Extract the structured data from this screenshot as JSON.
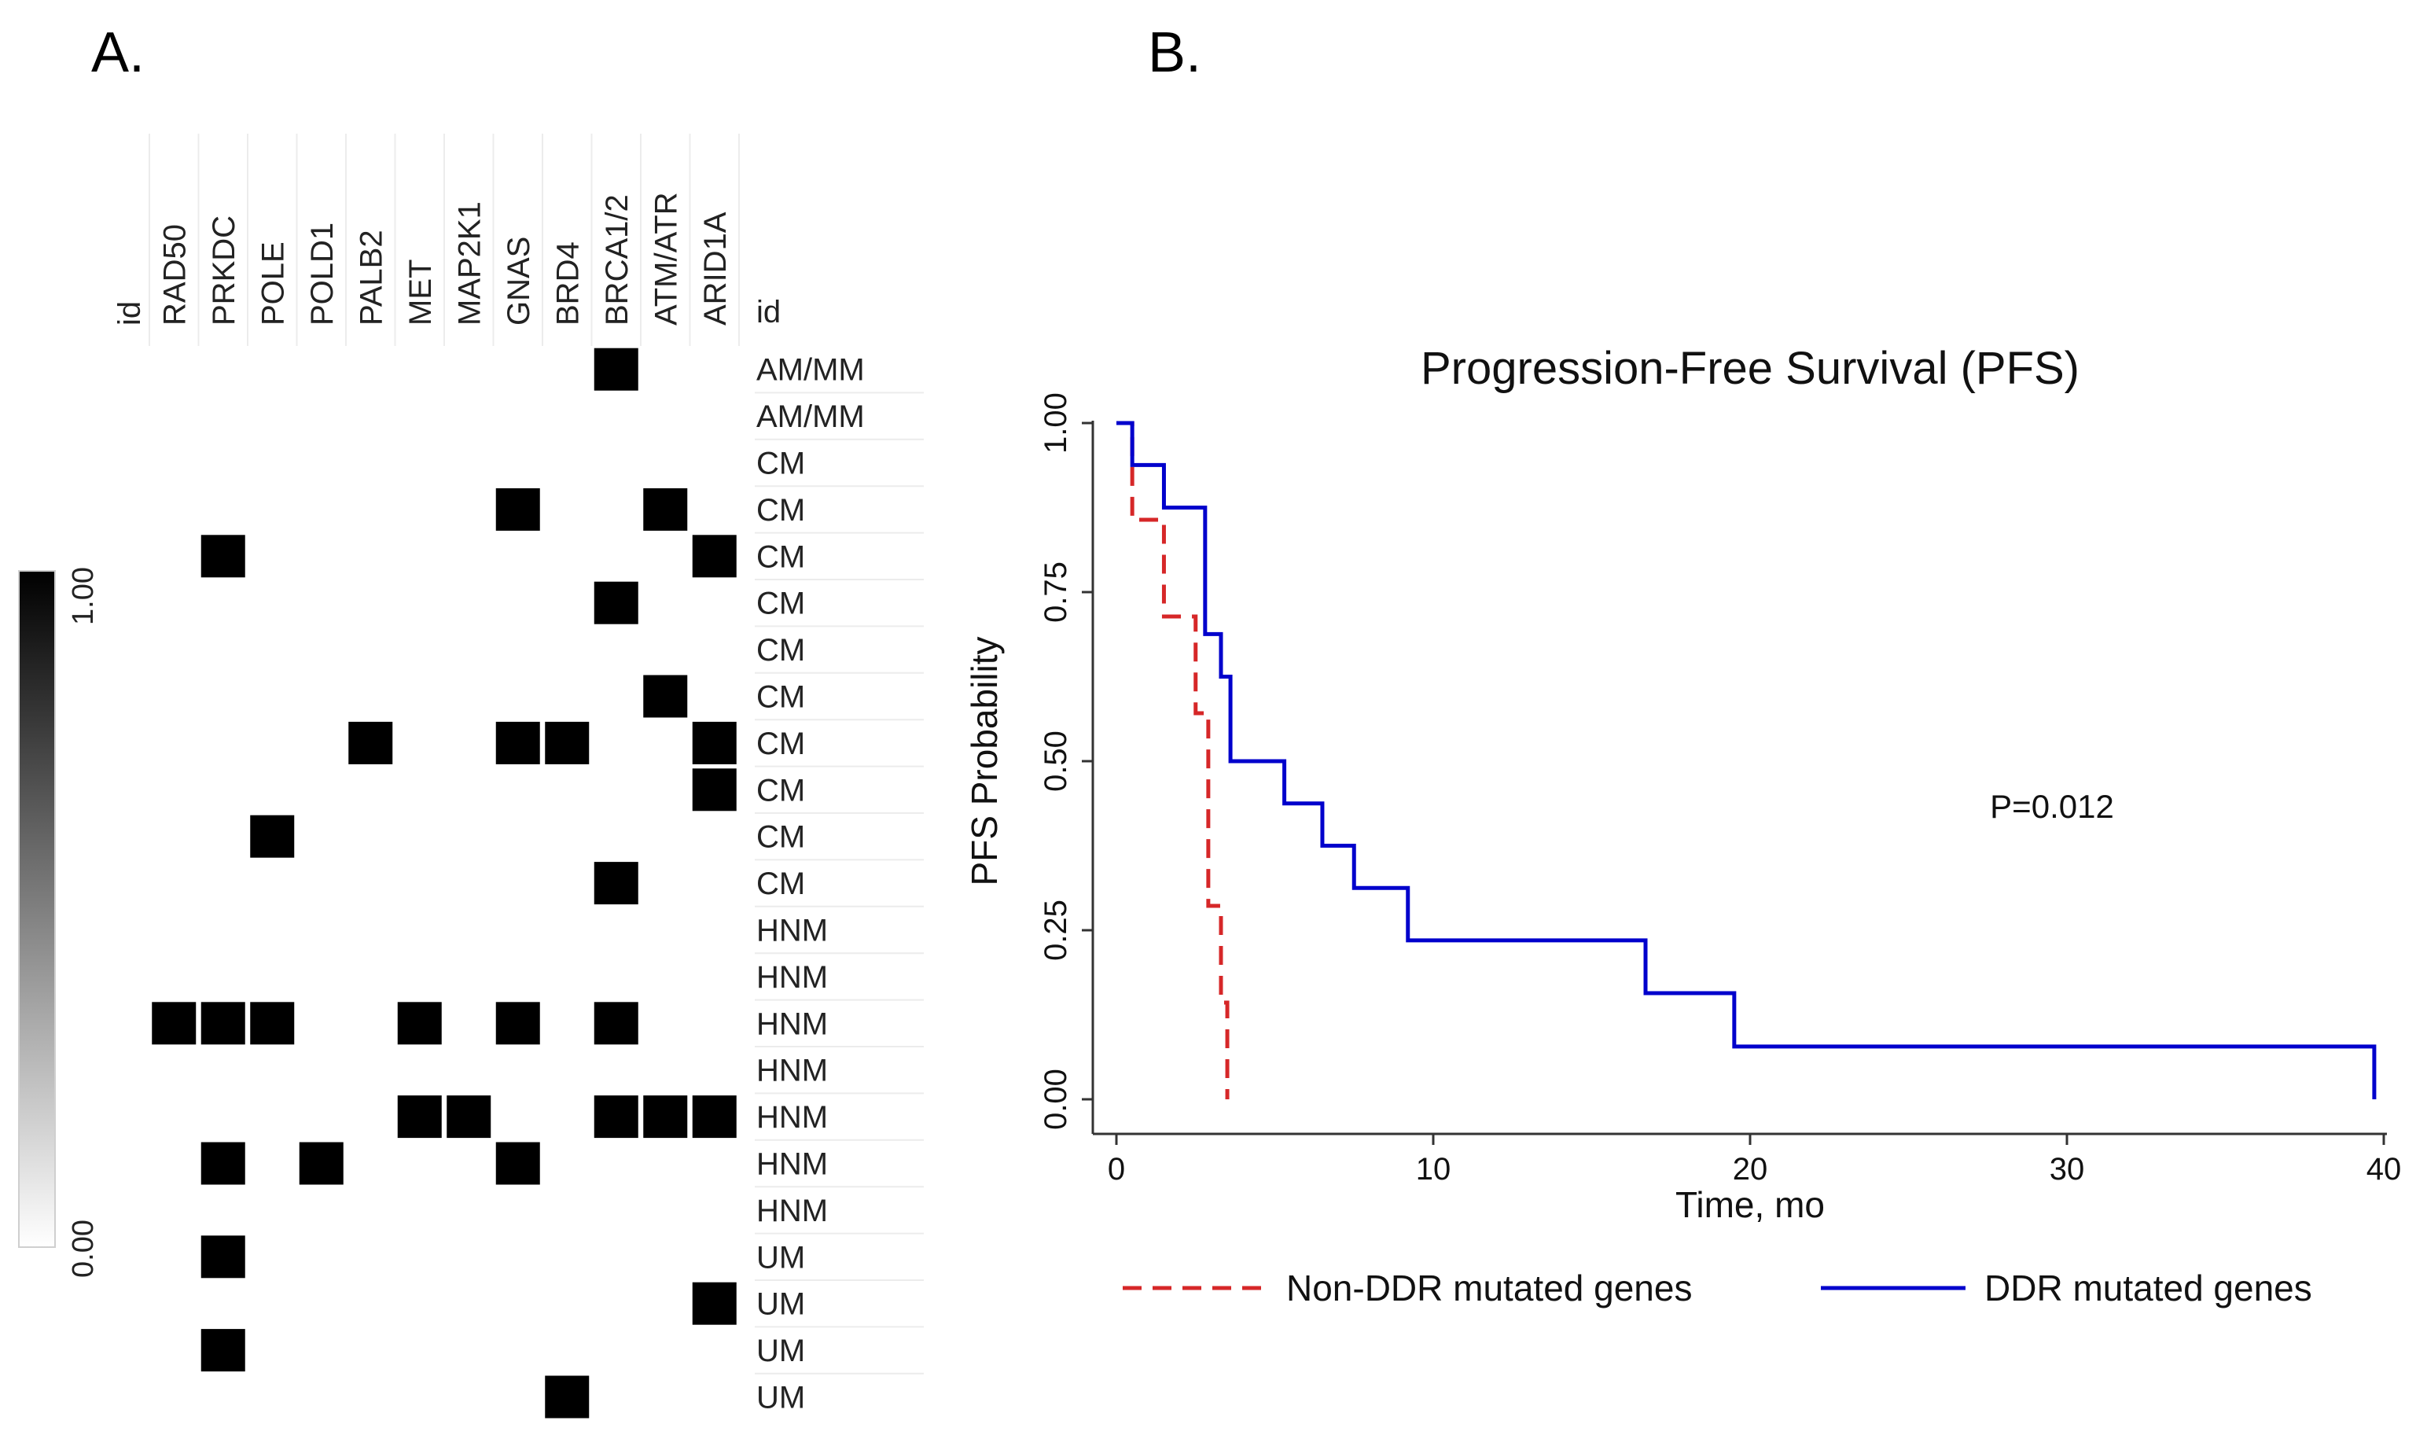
{
  "panels": {
    "a_label": "A.",
    "b_label": "B."
  },
  "chart_data": [
    {
      "type": "heatmap",
      "panel": "A.",
      "id_label_left": "id",
      "id_label_right": "id",
      "genes": [
        "RAD50",
        "PRKDC",
        "POLE",
        "POLD1",
        "PALB2",
        "MET",
        "MAP2K1",
        "GNAS",
        "BRD4",
        "BRCA1/2",
        "ATM/ATR",
        "ARID1A"
      ],
      "rows": [
        {
          "id": "AM/MM",
          "values": [
            0,
            0,
            0,
            0,
            0,
            0,
            0,
            0,
            0,
            1,
            0,
            0
          ]
        },
        {
          "id": "AM/MM",
          "values": [
            0,
            0,
            0,
            0,
            0,
            0,
            0,
            0,
            0,
            0,
            0,
            0
          ]
        },
        {
          "id": "CM",
          "values": [
            0,
            0,
            0,
            0,
            0,
            0,
            0,
            0,
            0,
            0,
            0,
            0
          ]
        },
        {
          "id": "CM",
          "values": [
            0,
            0,
            0,
            0,
            0,
            0,
            0,
            1,
            0,
            0,
            1,
            0
          ]
        },
        {
          "id": "CM",
          "values": [
            0,
            1,
            0,
            0,
            0,
            0,
            0,
            0,
            0,
            0,
            0,
            1
          ]
        },
        {
          "id": "CM",
          "values": [
            0,
            0,
            0,
            0,
            0,
            0,
            0,
            0,
            0,
            1,
            0,
            0
          ]
        },
        {
          "id": "CM",
          "values": [
            0,
            0,
            0,
            0,
            0,
            0,
            0,
            0,
            0,
            0,
            0,
            0
          ]
        },
        {
          "id": "CM",
          "values": [
            0,
            0,
            0,
            0,
            0,
            0,
            0,
            0,
            0,
            0,
            1,
            0
          ]
        },
        {
          "id": "CM",
          "values": [
            0,
            0,
            0,
            0,
            1,
            0,
            0,
            1,
            1,
            0,
            0,
            1
          ]
        },
        {
          "id": "CM",
          "values": [
            0,
            0,
            0,
            0,
            0,
            0,
            0,
            0,
            0,
            0,
            0,
            1
          ]
        },
        {
          "id": "CM",
          "values": [
            0,
            0,
            1,
            0,
            0,
            0,
            0,
            0,
            0,
            0,
            0,
            0
          ]
        },
        {
          "id": "CM",
          "values": [
            0,
            0,
            0,
            0,
            0,
            0,
            0,
            0,
            0,
            1,
            0,
            0
          ]
        },
        {
          "id": "HNM",
          "values": [
            0,
            0,
            0,
            0,
            0,
            0,
            0,
            0,
            0,
            0,
            0,
            0
          ]
        },
        {
          "id": "HNM",
          "values": [
            0,
            0,
            0,
            0,
            0,
            0,
            0,
            0,
            0,
            0,
            0,
            0
          ]
        },
        {
          "id": "HNM",
          "values": [
            1,
            1,
            1,
            0,
            0,
            1,
            0,
            1,
            0,
            1,
            0,
            0
          ]
        },
        {
          "id": "HNM",
          "values": [
            0,
            0,
            0,
            0,
            0,
            0,
            0,
            0,
            0,
            0,
            0,
            0
          ]
        },
        {
          "id": "HNM",
          "values": [
            0,
            0,
            0,
            0,
            0,
            1,
            1,
            0,
            0,
            1,
            1,
            1
          ]
        },
        {
          "id": "HNM",
          "values": [
            0,
            1,
            0,
            1,
            0,
            0,
            0,
            1,
            0,
            0,
            0,
            0
          ]
        },
        {
          "id": "HNM",
          "values": [
            0,
            0,
            0,
            0,
            0,
            0,
            0,
            0,
            0,
            0,
            0,
            0
          ]
        },
        {
          "id": "UM",
          "values": [
            0,
            1,
            0,
            0,
            0,
            0,
            0,
            0,
            0,
            0,
            0,
            0
          ]
        },
        {
          "id": "UM",
          "values": [
            0,
            0,
            0,
            0,
            0,
            0,
            0,
            0,
            0,
            0,
            0,
            1
          ]
        },
        {
          "id": "UM",
          "values": [
            0,
            1,
            0,
            0,
            0,
            0,
            0,
            0,
            0,
            0,
            0,
            0
          ]
        },
        {
          "id": "UM",
          "values": [
            0,
            0,
            0,
            0,
            0,
            0,
            0,
            0,
            1,
            0,
            0,
            0
          ]
        }
      ],
      "colorbar": {
        "max_label": "1.00",
        "min_label": "0.00",
        "range": [
          0,
          1
        ],
        "colors": [
          "#ffffff",
          "#000000"
        ]
      }
    },
    {
      "type": "line",
      "panel": "B.",
      "title": "Progression-Free Survival (PFS)",
      "xlabel": "Time, mo",
      "ylabel": "PFS Probability",
      "xlim": [
        0,
        40
      ],
      "ylim": [
        0,
        1
      ],
      "xticks": [
        0,
        10,
        20,
        30,
        40
      ],
      "xtick_labels": [
        "0",
        "10",
        "20",
        "30",
        "40"
      ],
      "yticks": [
        0,
        0.25,
        0.5,
        0.75,
        1
      ],
      "ytick_labels": [
        "0.00",
        "0.25",
        "0.50",
        "0.75",
        "1.00"
      ],
      "annotation": "P=0.012",
      "series": [
        {
          "name": "Non-DDR mutated genes",
          "color": "#d62728",
          "style": "dashed",
          "x": [
            0,
            0.5,
            1.5,
            2.5,
            2.9,
            3.3,
            3.5
          ],
          "y": [
            1.0,
            0.857,
            0.714,
            0.571,
            0.286,
            0.143,
            0.0
          ]
        },
        {
          "name": "DDR mutated genes",
          "color": "#0000cc",
          "style": "solid",
          "x": [
            0,
            0.5,
            1.5,
            2.8,
            3.3,
            3.6,
            5.3,
            6.5,
            7.5,
            9.2,
            16.7,
            19.5,
            39.7
          ],
          "y": [
            1.0,
            0.938,
            0.875,
            0.688,
            0.625,
            0.5,
            0.4375,
            0.375,
            0.3125,
            0.235,
            0.157,
            0.078,
            0.0
          ]
        }
      ]
    }
  ]
}
